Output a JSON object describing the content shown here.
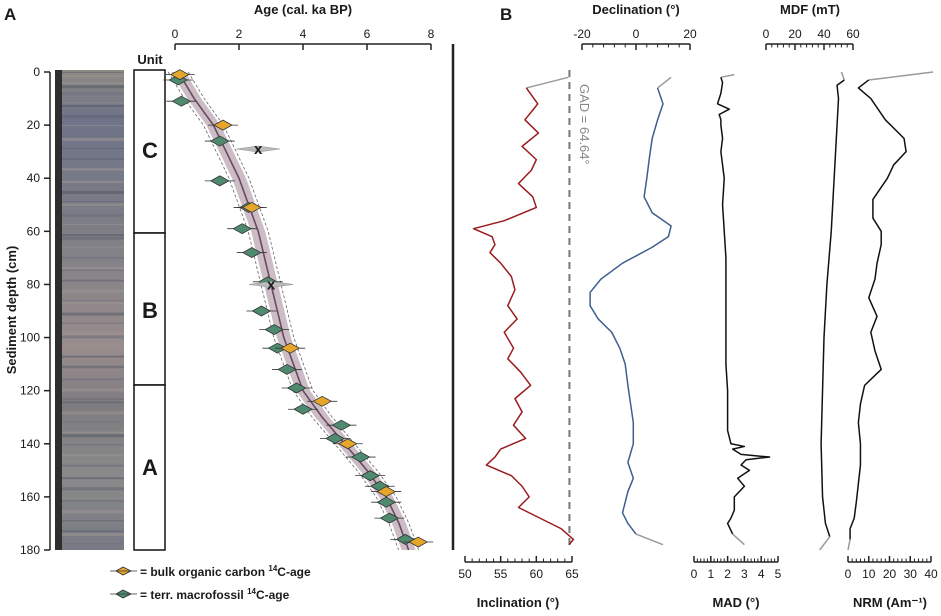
{
  "panels": {
    "a": "A",
    "b": "B"
  },
  "units": {
    "header": "Unit",
    "c": "C",
    "b": "B",
    "a": "A"
  },
  "legend": {
    "bulk_prefix": "= bulk organic carbon ",
    "bulk_sup": "14",
    "bulk_suffix": "C-age",
    "macro_prefix": "= terr. macrofossil ",
    "macro_sup": "14",
    "macro_suffix": "C-age"
  },
  "gad_label": "GAD = 64.64°",
  "colors": {
    "bulk": "#e6a62c",
    "macro": "#4f8a6f",
    "envelope": "#b9a6b3",
    "model": "#6b4a5e",
    "inclination": "#9b1b1f",
    "declination": "#3d5f8c",
    "trace": "#111111",
    "trace_end": "#9a9a9a",
    "gad": "#777777"
  },
  "chart_data": [
    {
      "type": "scatter",
      "id": "age-depth",
      "title": "Age (cal. ka BP)",
      "xlabel": "Age (cal. ka BP)",
      "ylabel": "Sediment depth (cm)",
      "xlim": [
        0,
        8
      ],
      "ylim": [
        0,
        180
      ],
      "xticks": [
        "0",
        "2",
        "4",
        "6",
        "8"
      ],
      "yticks": [
        "0",
        "20",
        "40",
        "60",
        "80",
        "100",
        "120",
        "140",
        "160",
        "180"
      ],
      "bulk_dates": [
        [
          0.15,
          1
        ],
        [
          1.5,
          20
        ],
        [
          2.4,
          51
        ],
        [
          3.6,
          104
        ],
        [
          4.6,
          124
        ],
        [
          5.4,
          140
        ],
        [
          6.6,
          158
        ],
        [
          7.6,
          177
        ]
      ],
      "macro_dates": [
        [
          0.1,
          3
        ],
        [
          0.2,
          11
        ],
        [
          1.4,
          26
        ],
        [
          1.4,
          41
        ],
        [
          2.3,
          51
        ],
        [
          2.1,
          59
        ],
        [
          2.4,
          68
        ],
        [
          2.9,
          79
        ],
        [
          2.7,
          90
        ],
        [
          3.1,
          97
        ],
        [
          3.2,
          104
        ],
        [
          3.5,
          112
        ],
        [
          3.8,
          119
        ],
        [
          4.0,
          127
        ],
        [
          5.2,
          133
        ],
        [
          5.0,
          138
        ],
        [
          5.8,
          145
        ],
        [
          6.1,
          152
        ],
        [
          6.4,
          156
        ],
        [
          6.6,
          162
        ],
        [
          6.7,
          168
        ],
        [
          7.2,
          176
        ]
      ],
      "outliers": [
        [
          2.6,
          29
        ],
        [
          3.0,
          80
        ]
      ],
      "outlier_label": "x",
      "model": [
        [
          0.1,
          0
        ],
        [
          0.6,
          10
        ],
        [
          1.2,
          20
        ],
        [
          1.6,
          30
        ],
        [
          2.0,
          40
        ],
        [
          2.3,
          50
        ],
        [
          2.6,
          60
        ],
        [
          2.8,
          70
        ],
        [
          3.0,
          80
        ],
        [
          3.2,
          90
        ],
        [
          3.4,
          100
        ],
        [
          3.7,
          110
        ],
        [
          4.0,
          120
        ],
        [
          4.6,
          130
        ],
        [
          5.3,
          140
        ],
        [
          6.0,
          150
        ],
        [
          6.6,
          160
        ],
        [
          7.0,
          170
        ],
        [
          7.3,
          180
        ]
      ]
    },
    {
      "type": "line",
      "id": "inclination",
      "xlabel": "Inclination (°)",
      "xlim": [
        50,
        65
      ],
      "xticks": [
        "50",
        "55",
        "60",
        "65"
      ],
      "gad": 64.64,
      "depth": [
        2,
        6,
        12,
        18,
        23,
        28,
        33,
        37,
        42,
        47,
        51,
        56,
        59,
        62,
        65,
        68,
        72,
        77,
        82,
        88,
        93,
        98,
        104,
        108,
        113,
        118,
        123,
        128,
        133,
        138,
        142,
        145,
        148,
        152,
        156,
        160,
        164,
        168,
        172,
        176,
        178
      ],
      "values": [
        64.5,
        58.6,
        60.2,
        58.4,
        60.3,
        58.0,
        60.0,
        59.3,
        57.5,
        59.5,
        60.0,
        55.5,
        51.2,
        53.8,
        54.2,
        53.5,
        55.0,
        56.5,
        57.0,
        56.0,
        57.3,
        55.5,
        56.8,
        56.0,
        57.8,
        59.2,
        57.0,
        58.0,
        56.8,
        58.5,
        55.0,
        54.2,
        53.0,
        56.5,
        58.0,
        59.0,
        57.5,
        60.5,
        63.5,
        65.2,
        64.6
      ]
    },
    {
      "type": "line",
      "id": "declination",
      "title": "Declination (°)",
      "xlim": [
        -20,
        20
      ],
      "xticks": [
        "-20",
        "0",
        "20"
      ],
      "depth": [
        2,
        6,
        12,
        18,
        25,
        32,
        40,
        47,
        53,
        58,
        62,
        66,
        72,
        78,
        83,
        88,
        93,
        98,
        104,
        110,
        118,
        125,
        132,
        140,
        147,
        153,
        158,
        162,
        166,
        170,
        174,
        178
      ],
      "values": [
        13,
        8,
        10,
        8,
        6,
        5,
        4,
        3,
        6,
        13,
        12,
        6,
        -5,
        -13,
        -17,
        -17,
        -14,
        -9,
        -6,
        -4,
        -3,
        -2,
        -1,
        -1,
        -3,
        -1,
        -3,
        -4,
        -5,
        -3,
        0,
        10
      ]
    },
    {
      "type": "line",
      "id": "mad",
      "xlabel": "MAD (°)",
      "xlim": [
        0,
        5
      ],
      "xticks": [
        "0",
        "1",
        "2",
        "3",
        "4",
        "5"
      ],
      "depth": [
        1,
        2,
        4,
        8,
        12,
        14,
        16,
        18,
        20,
        25,
        30,
        40,
        50,
        60,
        70,
        80,
        90,
        100,
        110,
        120,
        130,
        135,
        140,
        141,
        142,
        144,
        145,
        146,
        148,
        150,
        153,
        156,
        160,
        165,
        168,
        170,
        174,
        178
      ],
      "values": [
        2.4,
        1.6,
        1.7,
        1.6,
        1.4,
        2.1,
        1.5,
        1.6,
        1.6,
        1.7,
        1.6,
        1.8,
        1.7,
        1.8,
        1.9,
        1.9,
        1.9,
        1.9,
        1.9,
        2.0,
        2.0,
        2.0,
        2.2,
        3.0,
        2.3,
        2.8,
        4.5,
        3.1,
        2.8,
        3.3,
        2.6,
        3.0,
        2.4,
        2.4,
        2.2,
        2.0,
        2.3,
        3.0
      ]
    },
    {
      "type": "line",
      "id": "mdf",
      "title": "MDF (mT)",
      "xlim": [
        0,
        60
      ],
      "xticks": [
        "0",
        "20",
        "40",
        "60"
      ],
      "depth": [
        0,
        3,
        5,
        10,
        20,
        40,
        60,
        80,
        100,
        120,
        140,
        160,
        170,
        175,
        180
      ],
      "values": [
        52,
        54,
        49,
        50,
        49,
        47,
        45,
        42,
        40,
        39,
        38,
        39,
        41,
        44,
        37
      ]
    },
    {
      "type": "line",
      "id": "nrm",
      "xlabel": "NRM (Am⁻¹)",
      "xlim": [
        0,
        40
      ],
      "xticks": [
        "0",
        "10",
        "20",
        "30",
        "40"
      ],
      "depth": [
        0,
        3,
        6,
        10,
        18,
        25,
        30,
        35,
        40,
        48,
        55,
        60,
        65,
        72,
        78,
        85,
        92,
        98,
        105,
        112,
        118,
        125,
        132,
        140,
        148,
        155,
        162,
        168,
        172,
        176,
        180
      ],
      "values": [
        41,
        10,
        5,
        11,
        18,
        27,
        28,
        22,
        19,
        12,
        12,
        16,
        16,
        14,
        13,
        10,
        14,
        11,
        13,
        16,
        8,
        6,
        5,
        6,
        6,
        5,
        4,
        3,
        1,
        1,
        0
      ]
    }
  ]
}
